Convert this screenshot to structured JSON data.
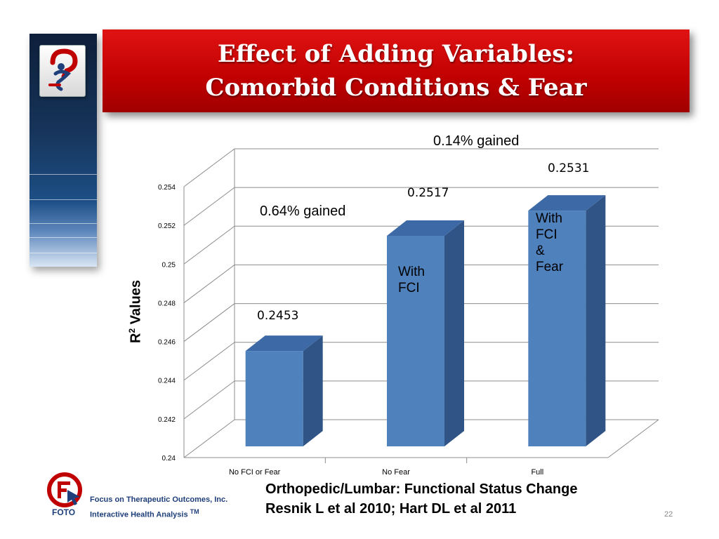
{
  "title": {
    "line1": "Effect of Adding Variables:",
    "line2": "Comorbid Conditions & Fear"
  },
  "chart_data": {
    "type": "bar",
    "categories": [
      "No FCI or Fear",
      "No Fear",
      "Full"
    ],
    "values": [
      0.2453,
      0.2517,
      0.2531
    ],
    "value_labels": [
      "0.2453",
      "0.2517",
      "0.2531"
    ],
    "bar_labels": [
      [],
      [
        "With",
        "FCI"
      ],
      [
        "With",
        "FCI",
        "&",
        "Fear"
      ]
    ],
    "ylabel": "R",
    "ylabel_sup": "2",
    "ylabel_rest": " Values",
    "ylim": [
      0.24,
      0.254
    ],
    "yticks": [
      "0.24",
      "0.242",
      "0.244",
      "0.246",
      "0.248",
      "0.25",
      "0.252",
      "0.254"
    ],
    "grid": true,
    "style": "3d-column",
    "annotations": [
      "0.64% gained",
      "0.14% gained"
    ]
  },
  "colors": {
    "bar_front": "#4f81bd",
    "bar_side": "#2f5485",
    "bar_top": "#3d6aa6",
    "banner": "#c00000",
    "gridline": "#8c8c8c"
  },
  "footer": {
    "company": "Focus on Therapeutic Outcomes, Inc.",
    "tagline": "Interactive Health Analysis",
    "tm": "TM",
    "logo_word": "FOTO",
    "citation_line1": "Orthopedic/Lumbar: Functional Status Change",
    "citation_line2": "Resnik L et al 2010; Hart DL et al 2011",
    "page_number": "22"
  },
  "icons": {
    "top_logo": "person-question-logo-icon",
    "foto_logo": "foto-circle-logo-icon"
  }
}
